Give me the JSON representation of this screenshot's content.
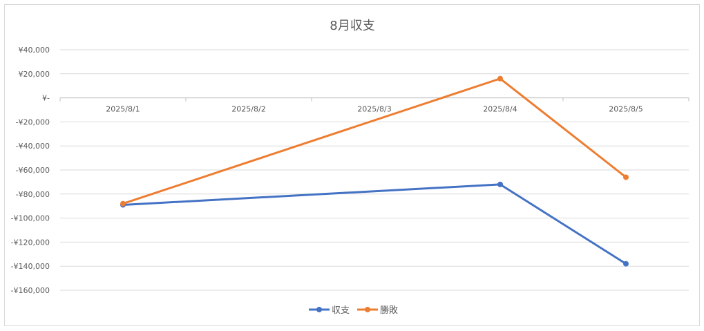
{
  "chart_data": {
    "type": "line",
    "title": "8月収支",
    "categories": [
      "2025/8/1",
      "2025/8/2",
      "2025/8/3",
      "2025/8/4",
      "2025/8/5"
    ],
    "x": [
      "2025/8/1",
      "2025/8/4",
      "2025/8/5"
    ],
    "series": [
      {
        "name": "収支",
        "color": "#4472c4",
        "values": [
          -89000,
          -72000,
          -138000
        ]
      },
      {
        "name": "勝敗",
        "color": "#ed7d31",
        "values": [
          -88000,
          16000,
          -66000
        ]
      }
    ],
    "ylim": [
      -160000,
      40000
    ],
    "yticks": [
      40000,
      20000,
      0,
      -20000,
      -40000,
      -60000,
      -80000,
      -100000,
      -120000,
      -140000,
      -160000
    ],
    "ytick_labels": [
      "¥40,000",
      "¥20,000",
      "¥-",
      "-¥20,000",
      "-¥40,000",
      "-¥60,000",
      "-¥80,000",
      "-¥100,000",
      "-¥120,000",
      "-¥140,000",
      "-¥160,000"
    ],
    "grid": true,
    "legend": "bottom",
    "xlabel": "",
    "ylabel": ""
  }
}
